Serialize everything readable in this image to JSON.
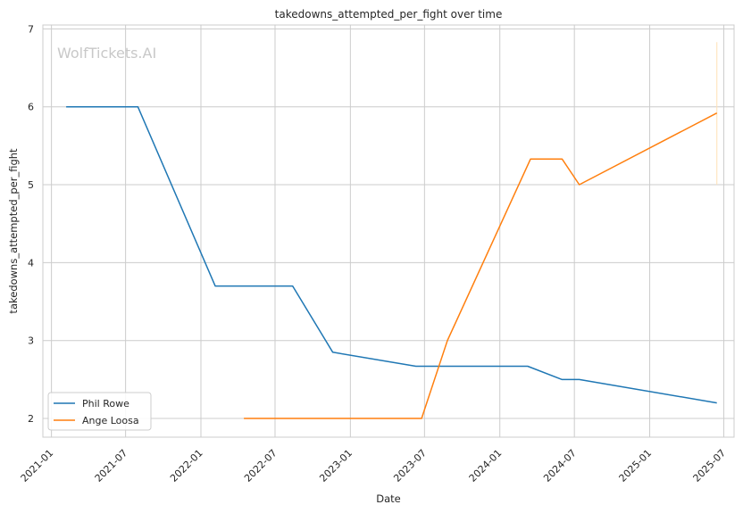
{
  "chart_data": {
    "type": "line",
    "title": "takedowns_attempted_per_fight over time",
    "xlabel": "Date",
    "ylabel": "takedowns_attempted_per_fight",
    "watermark": "WolfTickets.AI",
    "x_ticks": [
      "2021-01",
      "2021-07",
      "2022-01",
      "2022-07",
      "2023-01",
      "2023-07",
      "2024-01",
      "2024-07",
      "2025-01",
      "2025-07"
    ],
    "y_ticks": [
      2,
      3,
      4,
      5,
      6,
      7
    ],
    "xlim": [
      "2020-12-11",
      "2025-07-26"
    ],
    "ylim": [
      1.76,
      7.05
    ],
    "grid": true,
    "legend_position": "lower-left",
    "series": [
      {
        "name": "Phil Rowe",
        "color": "#1f77b4",
        "points": [
          {
            "x": "2021-02-06",
            "y": 6.0
          },
          {
            "x": "2021-07-31",
            "y": 6.0
          },
          {
            "x": "2022-02-05",
            "y": 3.7
          },
          {
            "x": "2022-08-13",
            "y": 3.7
          },
          {
            "x": "2022-11-19",
            "y": 2.85
          },
          {
            "x": "2023-06-10",
            "y": 2.67
          },
          {
            "x": "2024-03-09",
            "y": 2.67
          },
          {
            "x": "2024-06-01",
            "y": 2.5
          },
          {
            "x": "2024-07-13",
            "y": 2.5
          },
          {
            "x": "2025-06-14",
            "y": 2.2
          }
        ]
      },
      {
        "name": "Ange Loosa",
        "color": "#ff7f0e",
        "points": [
          {
            "x": "2022-04-16",
            "y": 2.0
          },
          {
            "x": "2023-06-24",
            "y": 2.0
          },
          {
            "x": "2023-08-26",
            "y": 3.0
          },
          {
            "x": "2024-03-16",
            "y": 5.33
          },
          {
            "x": "2024-06-01",
            "y": 5.33
          },
          {
            "x": "2024-07-13",
            "y": 5.0
          },
          {
            "x": "2025-06-14",
            "y": 5.92
          }
        ]
      }
    ],
    "annotations": [
      {
        "type": "vertical-segment",
        "x": "2025-06-14",
        "y_range": [
          5.0,
          6.83
        ],
        "color": "#ffe0b5"
      }
    ]
  }
}
